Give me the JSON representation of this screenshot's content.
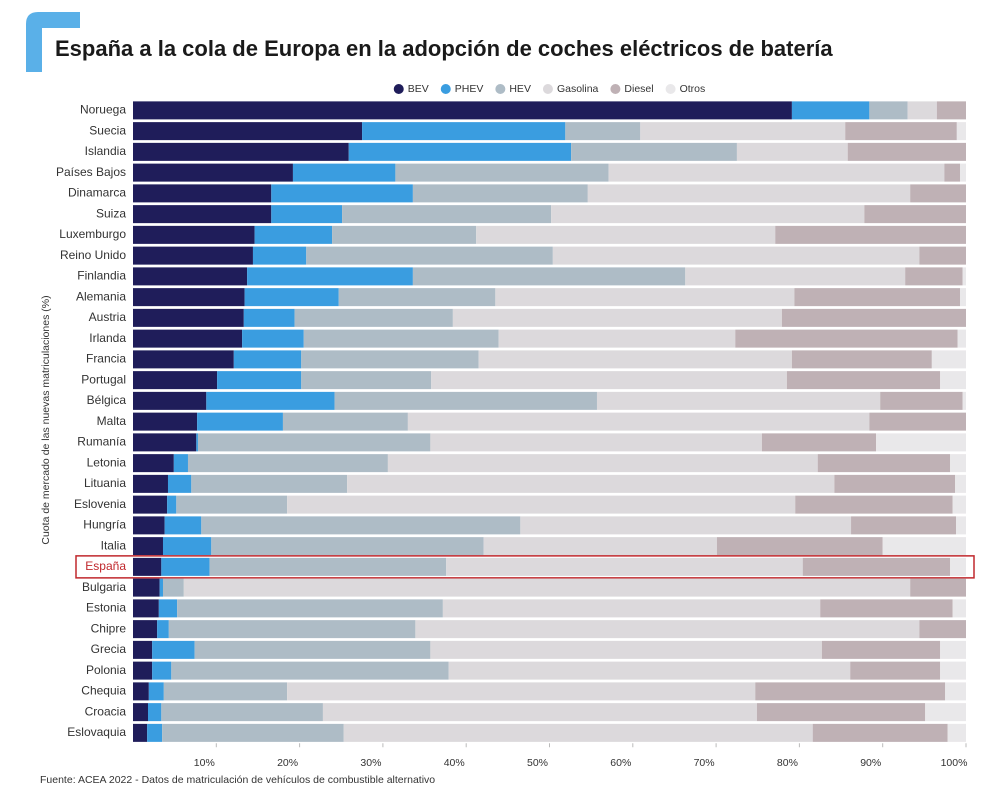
{
  "chart_data": {
    "type": "stacked-bar-horizontal",
    "title": "España a la cola de Europa en la adopción de coches eléctricos de batería",
    "y_label": "Cuota de mercado de las nuevas matriculaciones (%)",
    "source": "Fuente: ACEA 2022 - Datos de matriculación de vehículos de combustible alternativo",
    "categories": [
      "Noruega",
      "Suecia",
      "Islandia",
      "Países Bajos",
      "Dinamarca",
      "Suiza",
      "Luxemburgo",
      "Reino Unido",
      "Finlandia",
      "Alemania",
      "Austria",
      "Irlanda",
      "Francia",
      "Portugal",
      "Bélgica",
      "Malta",
      "Rumanía",
      "Letonia",
      "Lituania",
      "Eslovenia",
      "Hungría",
      "Italia",
      "España",
      "Bulgaria",
      "Estonia",
      "Chipre",
      "Grecia",
      "Polonia",
      "Chequia",
      "Croacia",
      "Eslovaquia"
    ],
    "highlight_index": 22,
    "highlight_color": "#c0282d",
    "series": [
      {
        "name": "BEV",
        "color": "#1f1d5a",
        "values": [
          79.1,
          27.5,
          25.9,
          19.2,
          16.6,
          16.6,
          14.6,
          14.4,
          13.7,
          13.4,
          13.3,
          13.1,
          12.1,
          10.1,
          8.8,
          7.7,
          7.6,
          4.9,
          4.2,
          4.1,
          3.8,
          3.6,
          3.4,
          3.2,
          3.1,
          2.9,
          2.3,
          2.3,
          1.9,
          1.8,
          1.7
        ]
      },
      {
        "name": "PHEV",
        "color": "#3a9de0",
        "values": [
          9.3,
          24.4,
          26.7,
          12.3,
          17.0,
          8.5,
          9.3,
          6.4,
          19.9,
          11.3,
          6.1,
          7.4,
          8.1,
          10.1,
          15.4,
          10.3,
          0.2,
          1.7,
          2.8,
          1.1,
          4.4,
          5.8,
          5.8,
          0.4,
          2.2,
          1.4,
          5.1,
          2.3,
          1.8,
          1.6,
          1.8
        ]
      },
      {
        "name": "HEV",
        "color": "#aebcc6",
        "values": [
          4.6,
          9.0,
          19.9,
          25.6,
          21.0,
          25.1,
          17.3,
          29.6,
          32.7,
          18.8,
          19.0,
          23.4,
          21.3,
          15.6,
          31.5,
          15.0,
          27.9,
          24.0,
          18.7,
          13.3,
          38.3,
          32.7,
          28.4,
          2.5,
          31.9,
          29.6,
          28.3,
          33.3,
          14.8,
          19.4,
          21.8
        ]
      },
      {
        "name": "Gasolina",
        "color": "#dcd9dc",
        "values": [
          3.5,
          24.6,
          13.3,
          40.3,
          38.7,
          37.6,
          35.9,
          44.0,
          26.4,
          35.9,
          39.5,
          28.4,
          37.6,
          42.7,
          34.0,
          55.4,
          39.8,
          51.6,
          58.5,
          61.0,
          39.7,
          28.0,
          42.8,
          87.2,
          45.3,
          60.5,
          47.0,
          48.2,
          56.2,
          52.1,
          56.3
        ]
      },
      {
        "name": "Diesel",
        "color": "#bfb1b5",
        "values": [
          3.5,
          13.4,
          14.2,
          1.9,
          6.7,
          12.2,
          22.9,
          5.6,
          6.9,
          19.9,
          22.1,
          26.7,
          16.8,
          18.4,
          9.9,
          11.6,
          13.7,
          15.9,
          14.5,
          18.9,
          12.6,
          19.9,
          17.7,
          6.7,
          15.9,
          5.6,
          14.2,
          10.8,
          22.8,
          20.2,
          16.2
        ]
      },
      {
        "name": "Otros",
        "color": "#e9e8ea",
        "values": [
          0,
          1.1,
          0,
          0.7,
          0,
          0,
          0,
          0,
          0.4,
          0.7,
          0,
          1.0,
          4.1,
          3.1,
          0.4,
          0,
          10.8,
          1.9,
          1.3,
          1.6,
          1.2,
          10.0,
          1.9,
          0,
          1.6,
          0,
          3.1,
          3.1,
          2.5,
          4.9,
          2.2
        ]
      }
    ],
    "xlim": [
      0,
      100
    ],
    "xticks": [
      {
        "value": 10,
        "label": "10%"
      },
      {
        "value": 20,
        "label": "20%"
      },
      {
        "value": 30,
        "label": "30%"
      },
      {
        "value": 40,
        "label": "40%"
      },
      {
        "value": 50,
        "label": "50%"
      },
      {
        "value": 60,
        "label": "60%"
      },
      {
        "value": 70,
        "label": "70%"
      },
      {
        "value": 80,
        "label": "80%"
      },
      {
        "value": 90,
        "label": "90%"
      },
      {
        "value": 100,
        "label": "100%"
      }
    ]
  }
}
